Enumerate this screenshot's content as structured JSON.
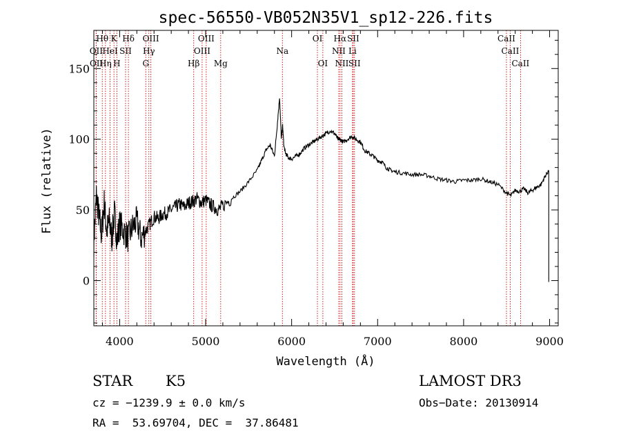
{
  "chart_data": {
    "type": "line",
    "title": "spec-56550-VB052N35V1_sp12-226.fits",
    "xlabel": "Wavelength (Å)",
    "ylabel": "Flux (relative)",
    "xlim": [
      3700,
      9100
    ],
    "ylim": [
      -32,
      177
    ],
    "x_ticks": [
      4000,
      5000,
      6000,
      7000,
      8000,
      9000
    ],
    "y_ticks": [
      0,
      50,
      100,
      150
    ],
    "x_tick_labels": [
      "4000",
      "5000",
      "6000",
      "7000",
      "8000",
      "9000"
    ],
    "y_tick_labels": [
      "0",
      "50",
      "100",
      "150"
    ],
    "grid": false,
    "line_color": "#000000",
    "marker_color": "#cc0000",
    "spectrum": {
      "name": "",
      "x": [
        3700,
        3730,
        3760,
        3790,
        3820,
        3850,
        3880,
        3910,
        3940,
        3970,
        4000,
        4050,
        4100,
        4150,
        4200,
        4250,
        4300,
        4350,
        4400,
        4450,
        4500,
        4550,
        4600,
        4650,
        4700,
        4750,
        4800,
        4850,
        4900,
        4950,
        5000,
        5050,
        5100,
        5150,
        5200,
        5300,
        5400,
        5500,
        5600,
        5650,
        5700,
        5750,
        5800,
        5830,
        5860,
        5880,
        5895,
        5910,
        5930,
        5960,
        6000,
        6050,
        6100,
        6150,
        6200,
        6250,
        6300,
        6350,
        6400,
        6450,
        6500,
        6540,
        6563,
        6600,
        6650,
        6700,
        6750,
        6800,
        6850,
        6900,
        6950,
        7000,
        7050,
        7100,
        7150,
        7200,
        7300,
        7400,
        7500,
        7600,
        7700,
        7800,
        7900,
        8000,
        8100,
        8200,
        8300,
        8400,
        8500,
        8550,
        8600,
        8650,
        8700,
        8750,
        8800,
        8850,
        8900,
        8950,
        8990
      ],
      "y": [
        28,
        60,
        45,
        32,
        55,
        35,
        42,
        30,
        48,
        28,
        40,
        35,
        30,
        38,
        42,
        30,
        35,
        40,
        45,
        44,
        47,
        48,
        50,
        52,
        54,
        52,
        55,
        56,
        58,
        55,
        57,
        54,
        52,
        50,
        53,
        58,
        63,
        70,
        78,
        85,
        92,
        96,
        88,
        108,
        130,
        100,
        110,
        95,
        90,
        87,
        86,
        88,
        90,
        94,
        96,
        98,
        100,
        102,
        104,
        106,
        104,
        100,
        100,
        98,
        100,
        102,
        100,
        98,
        92,
        90,
        88,
        85,
        84,
        80,
        78,
        77,
        76,
        75,
        75,
        74,
        72,
        71,
        70,
        71,
        71,
        72,
        70,
        68,
        62,
        60,
        64,
        63,
        65,
        62,
        64,
        66,
        68,
        74,
        78
      ]
    },
    "line_markers": [
      {
        "label": "Hθ",
        "wave": 3798,
        "row": 0
      },
      {
        "label": "OII",
        "wave": 3727,
        "row": 1
      },
      {
        "label": "OII",
        "wave": 3729,
        "row": 2
      },
      {
        "label": "HeI",
        "wave": 3889,
        "row": 1
      },
      {
        "label": "Hη",
        "wave": 3835,
        "row": 2
      },
      {
        "label": "K",
        "wave": 3934,
        "row": 0
      },
      {
        "label": "SII",
        "wave": 4069,
        "row": 1
      },
      {
        "label": "H",
        "wave": 3968,
        "row": 2
      },
      {
        "label": "Hδ",
        "wave": 4102,
        "row": 0
      },
      {
        "label": "OIII",
        "wave": 4363,
        "row": 0
      },
      {
        "label": "Hγ",
        "wave": 4340,
        "row": 1
      },
      {
        "label": "G",
        "wave": 4304,
        "row": 2
      },
      {
        "label": "Hβ",
        "wave": 4861,
        "row": 2
      },
      {
        "label": "OIII",
        "wave": 5007,
        "row": 0
      },
      {
        "label": "OIII",
        "wave": 4959,
        "row": 1
      },
      {
        "label": "Mg",
        "wave": 5175,
        "row": 2
      },
      {
        "label": "Na",
        "wave": 5893,
        "row": 1
      },
      {
        "label": "OI",
        "wave": 6300,
        "row": 0
      },
      {
        "label": "OI",
        "wave": 6363,
        "row": 2
      },
      {
        "label": "Hα",
        "wave": 6563,
        "row": 0
      },
      {
        "label": "NII",
        "wave": 6548,
        "row": 1
      },
      {
        "label": "NII",
        "wave": 6584,
        "row": 2
      },
      {
        "label": "SII",
        "wave": 6716,
        "row": 0
      },
      {
        "label": "Li",
        "wave": 6708,
        "row": 1
      },
      {
        "label": "SII",
        "wave": 6731,
        "row": 2
      },
      {
        "label": "CaII",
        "wave": 8498,
        "row": 0
      },
      {
        "label": "CaII",
        "wave": 8542,
        "row": 1
      },
      {
        "label": "CaII",
        "wave": 8662,
        "row": 2
      }
    ]
  },
  "info": {
    "object_class": "STAR",
    "subclass": "K5",
    "survey": "LAMOST DR3",
    "redshift_line": "cz = −1239.9 ± 0.0 km/s",
    "obs_date_line": "Obs−Date: 20130914",
    "coords_line": "RA =  53.69704, DEC =  37.86481"
  }
}
